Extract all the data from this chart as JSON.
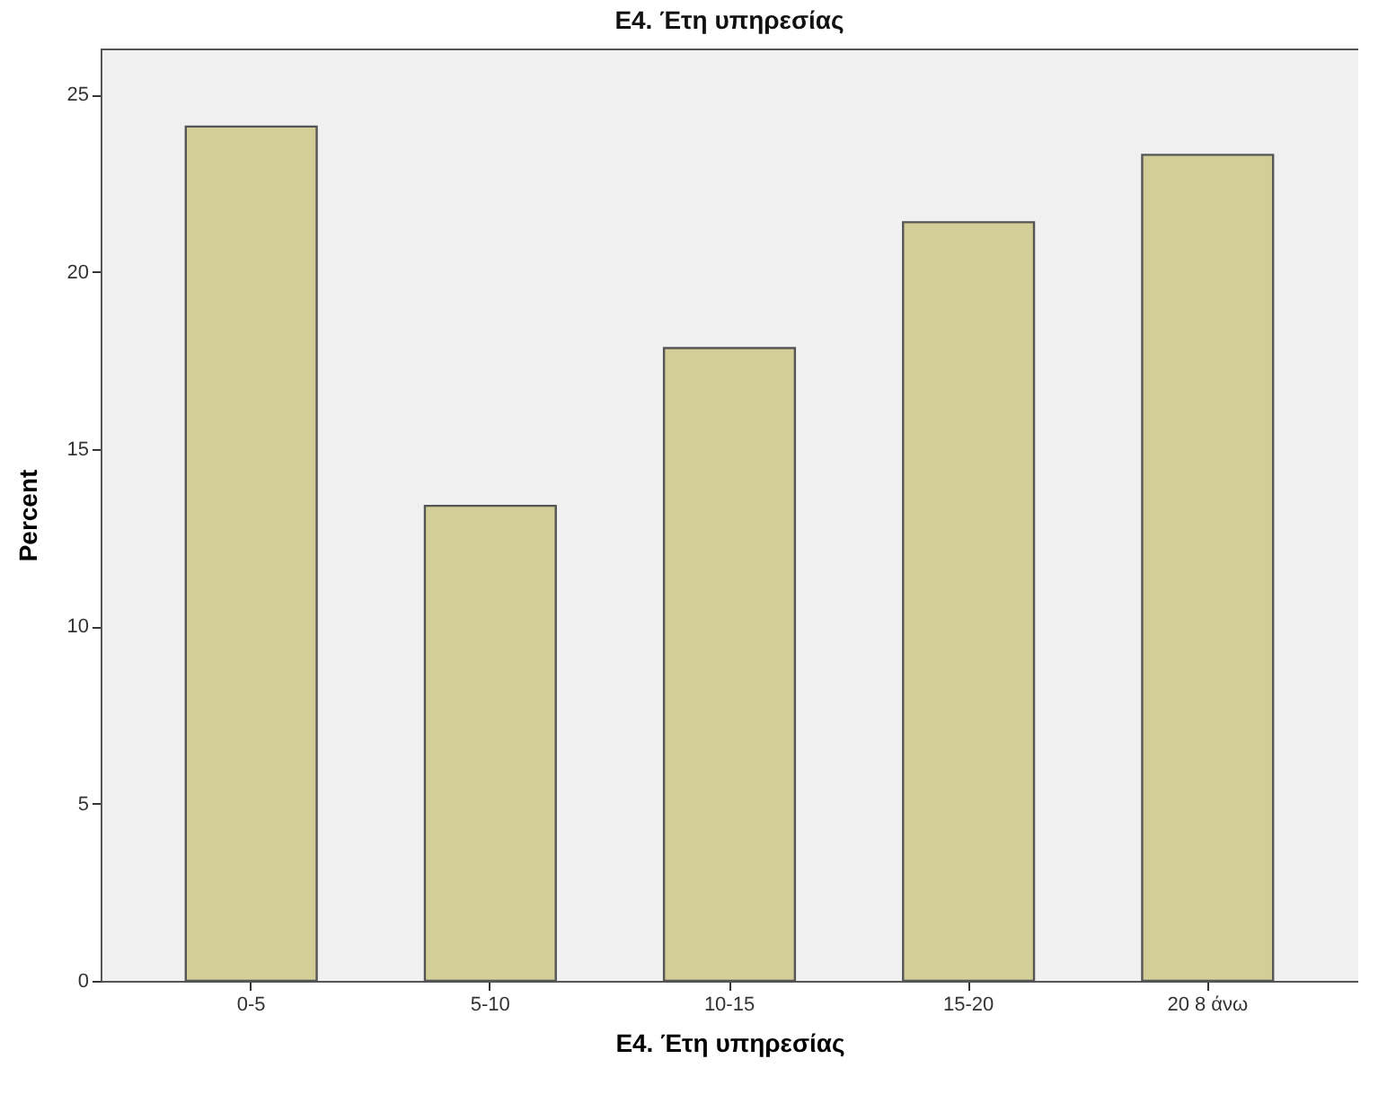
{
  "chart_data": {
    "type": "bar",
    "title": "E4. Έτη υπηρεσίας",
    "xlabel": "E4. Έτη υπηρεσίας",
    "ylabel": "Percent",
    "categories": [
      "0-5",
      "5-10",
      "10-15",
      "15-20",
      "20 8 άνω"
    ],
    "values": [
      24.1,
      13.4,
      17.85,
      21.4,
      23.3
    ],
    "color": "#d3ce97",
    "ylim": [
      0,
      26.3
    ],
    "yticks": [
      0,
      5,
      10,
      15,
      20,
      25
    ],
    "grid": false
  }
}
